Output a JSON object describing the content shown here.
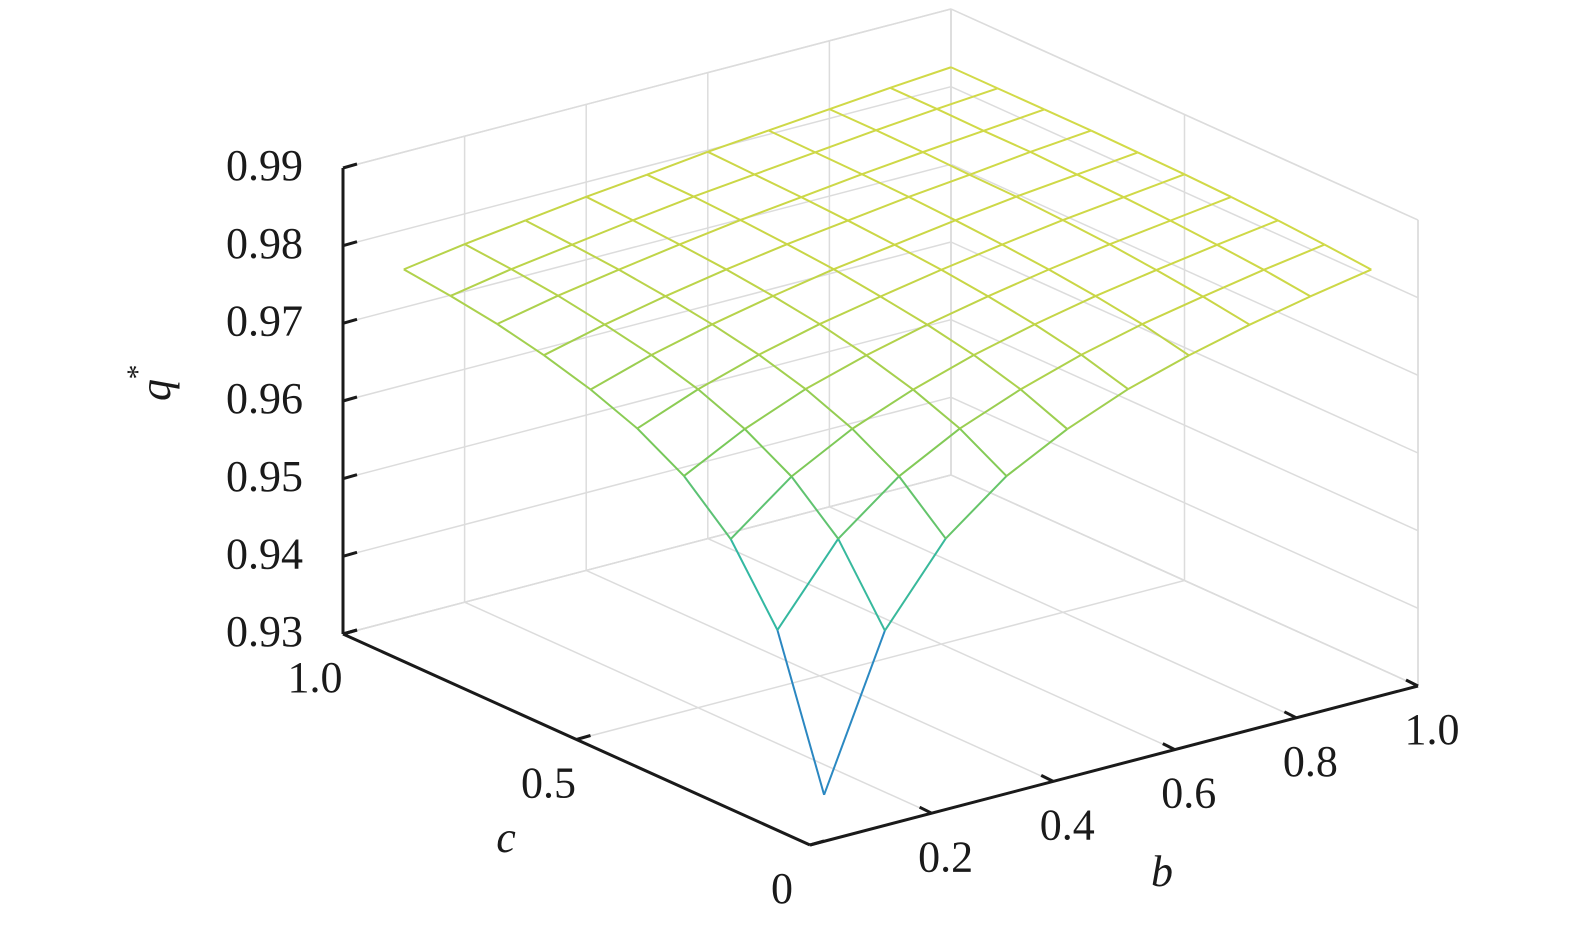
{
  "chart_data": {
    "type": "surface",
    "x_label": "b",
    "y_label": "c",
    "z_label": {
      "text": "q",
      "superscript": "*"
    },
    "x": [
      0.1,
      0.2,
      0.3,
      0.4,
      0.5,
      0.6,
      0.7,
      0.8,
      0.9,
      1.0
    ],
    "y": [
      0.1,
      0.2,
      0.3,
      0.4,
      0.5,
      0.6,
      0.7,
      0.8,
      0.9,
      1.0
    ],
    "z": [
      [
        0.9317,
        0.9508,
        0.9606,
        0.9666,
        0.9706,
        0.9737,
        0.976,
        0.9779,
        0.9795,
        0.9809
      ],
      [
        0.9502,
        0.9599,
        0.9659,
        0.97,
        0.973,
        0.9754,
        0.9773,
        0.9788,
        0.9802,
        0.9814
      ],
      [
        0.9592,
        0.9652,
        0.9693,
        0.9723,
        0.9747,
        0.9766,
        0.9782,
        0.9795,
        0.9807,
        0.9818
      ],
      [
        0.9646,
        0.9686,
        0.9717,
        0.974,
        0.9759,
        0.9775,
        0.9789,
        0.9801,
        0.9811,
        0.9821
      ],
      [
        0.968,
        0.971,
        0.9734,
        0.9753,
        0.9768,
        0.9782,
        0.9794,
        0.9805,
        0.9814,
        0.9823
      ],
      [
        0.9703,
        0.9727,
        0.9746,
        0.9762,
        0.9776,
        0.9787,
        0.9798,
        0.9808,
        0.9816,
        0.9824
      ],
      [
        0.972,
        0.9739,
        0.9755,
        0.9769,
        0.9781,
        0.9791,
        0.9801,
        0.9809,
        0.9818,
        0.9825
      ],
      [
        0.9733,
        0.9749,
        0.9762,
        0.9774,
        0.9785,
        0.9794,
        0.9803,
        0.9811,
        0.9818,
        0.9825
      ],
      [
        0.9742,
        0.9756,
        0.9767,
        0.9778,
        0.9788,
        0.9796,
        0.9804,
        0.9812,
        0.9819,
        0.9825
      ],
      [
        0.9749,
        0.9761,
        0.9771,
        0.9781,
        0.9789,
        0.9798,
        0.9805,
        0.9812,
        0.9819,
        0.9825
      ]
    ],
    "xlim": [
      0,
      1
    ],
    "ylim": [
      0,
      1
    ],
    "zlim": [
      0.93,
      0.99
    ],
    "xticks": [
      0.2,
      0.4,
      0.6,
      0.8,
      {
        "value": 1,
        "label": "1.0"
      }
    ],
    "yticks": [
      0,
      0.5,
      {
        "value": 1,
        "label": "1.0"
      }
    ],
    "zticks": [
      0.93,
      0.94,
      0.95,
      0.96,
      0.97,
      0.98,
      0.99
    ],
    "grid": true,
    "colormap": [
      "#3a2f9e",
      "#2a8fc4",
      "#2fb7a6",
      "#74c85a",
      "#c9d646",
      "#e0e04a"
    ]
  }
}
